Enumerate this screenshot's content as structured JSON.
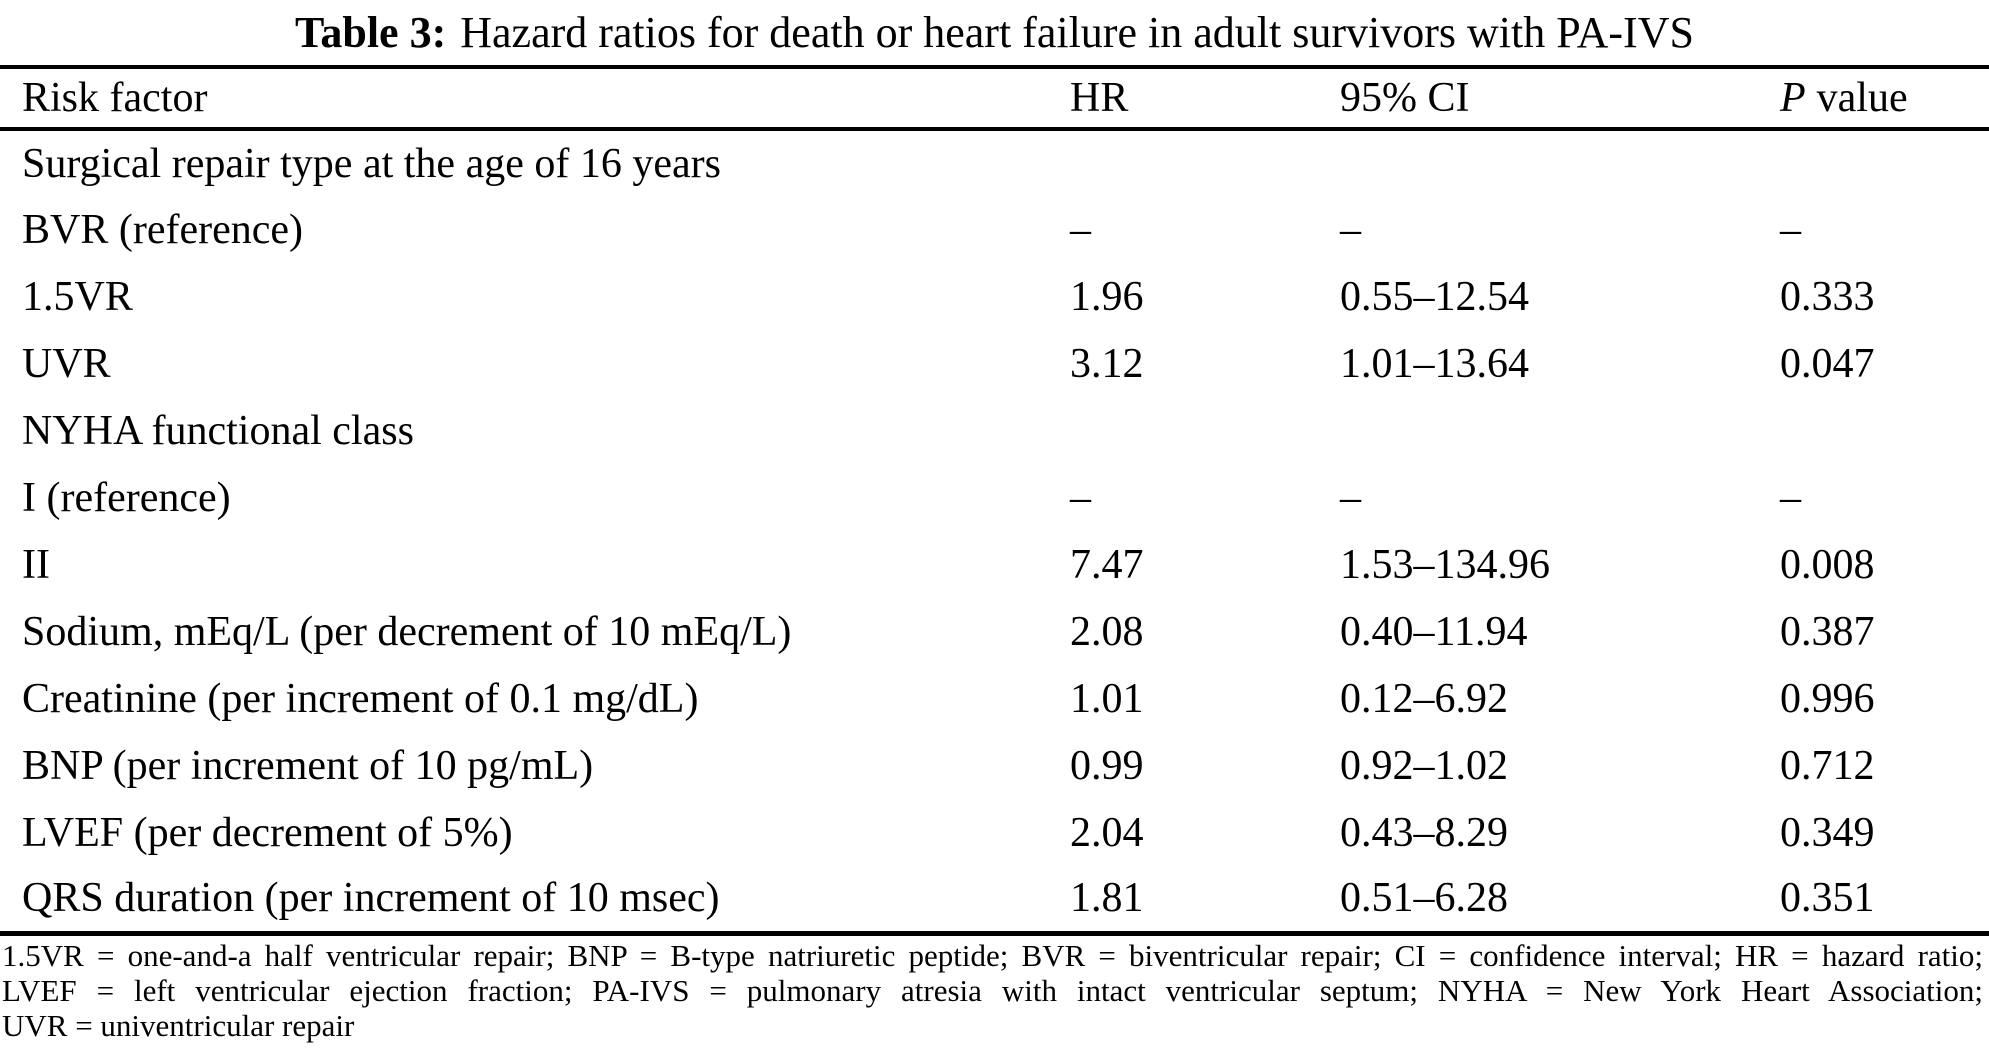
{
  "title": {
    "label": "Table 3:",
    "text": "Hazard ratios for death or heart failure in adult survivors with PA-IVS"
  },
  "table": {
    "columns": {
      "risk": "Risk factor",
      "hr": "HR",
      "ci": "95% CI",
      "p_italic": "P",
      "p_rest": "value"
    },
    "rows": [
      {
        "label": "Surgical repair type at the age of 16 years",
        "hr": "",
        "ci": "",
        "p": ""
      },
      {
        "label": "BVR (reference)",
        "hr": "–",
        "ci": "–",
        "p": "–"
      },
      {
        "label": "1.5VR",
        "hr": "1.96",
        "ci": "0.55–12.54",
        "p": "0.333"
      },
      {
        "label": "UVR",
        "hr": "3.12",
        "ci": "1.01–13.64",
        "p": "0.047"
      },
      {
        "label": "NYHA functional class",
        "hr": "",
        "ci": "",
        "p": ""
      },
      {
        "label": "I (reference)",
        "hr": "–",
        "ci": "–",
        "p": "–"
      },
      {
        "label": "II",
        "hr": "7.47",
        "ci": "1.53–134.96",
        "p": "0.008"
      },
      {
        "label": "Sodium, mEq/L (per decrement of 10 mEq/L)",
        "hr": "2.08",
        "ci": "0.40–11.94",
        "p": "0.387"
      },
      {
        "label": "Creatinine (per increment of 0.1 mg/dL)",
        "hr": "1.01",
        "ci": "0.12–6.92",
        "p": "0.996"
      },
      {
        "label": "BNP (per increment of 10 pg/mL)",
        "hr": "0.99",
        "ci": "0.92–1.02",
        "p": "0.712"
      },
      {
        "label": "LVEF (per decrement of 5%)",
        "hr": "2.04",
        "ci": "0.43–8.29",
        "p": "0.349"
      },
      {
        "label": "QRS duration (per increment of 10 msec)",
        "hr": "1.81",
        "ci": "0.51–6.28",
        "p": "0.351"
      }
    ]
  },
  "footnote": {
    "lines": [
      "1.5VR = one-and-a half ventricular repair; BNP = B-type natriuretic peptide; BVR = biventricular repair; CI = confidence interval; HR = hazard ratio;",
      "LVEF = left ventricular ejection fraction; PA-IVS = pulmonary atresia with intact ventricular septum; NYHA = New York Heart Association;",
      "UVR = univentricular repair"
    ]
  }
}
